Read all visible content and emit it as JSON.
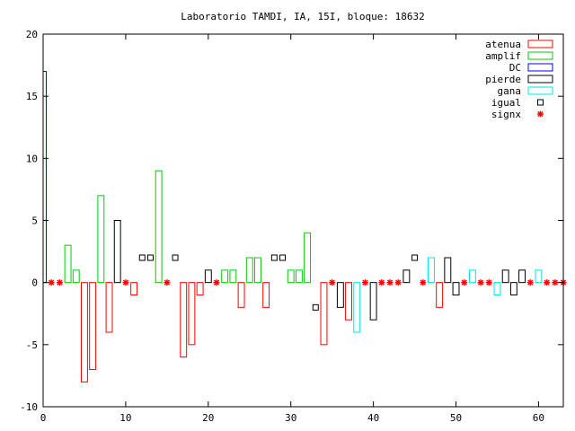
{
  "chart_data": {
    "type": "bar",
    "title": "Laboratorio TAMDI, IA, 15I,  bloque: 18632",
    "xlabel": "",
    "ylabel": "",
    "xlim": [
      0,
      63
    ],
    "ylim": [
      -10,
      20
    ],
    "xticks": [
      0,
      10,
      20,
      30,
      40,
      50,
      60
    ],
    "yticks": [
      -10,
      -5,
      0,
      5,
      10,
      15,
      20
    ],
    "grid": false,
    "legend_position": "top-right",
    "series": [
      {
        "name": "atenua",
        "kind": "bar",
        "color": "#ff0000",
        "points": [
          [
            5,
            -8
          ],
          [
            6,
            -7
          ],
          [
            8,
            -4
          ],
          [
            11,
            -1
          ],
          [
            17,
            -6
          ],
          [
            18,
            -5
          ],
          [
            19,
            -1
          ],
          [
            24,
            -2
          ],
          [
            27,
            -2
          ],
          [
            34,
            -5
          ],
          [
            37,
            -3
          ],
          [
            48,
            -2
          ]
        ]
      },
      {
        "name": "amplif",
        "kind": "bar",
        "color": "#00cc00",
        "points": [
          [
            3,
            3
          ],
          [
            4,
            1
          ],
          [
            7,
            7
          ],
          [
            14,
            9
          ],
          [
            22,
            1
          ],
          [
            23,
            1
          ],
          [
            25,
            2
          ],
          [
            26,
            2
          ],
          [
            30,
            1
          ],
          [
            31,
            1
          ],
          [
            32,
            4
          ]
        ]
      },
      {
        "name": "DC",
        "kind": "bar",
        "color": "#0000ff",
        "points": [
          [
            0,
            17
          ]
        ]
      },
      {
        "name": "pierde",
        "kind": "bar",
        "color": "#000000",
        "points": [
          [
            9,
            5
          ],
          [
            20,
            1
          ],
          [
            36,
            -2
          ],
          [
            40,
            -3
          ],
          [
            44,
            1
          ],
          [
            49,
            2
          ],
          [
            50,
            -1
          ],
          [
            56,
            1
          ],
          [
            57,
            -1
          ],
          [
            58,
            1
          ]
        ]
      },
      {
        "name": "gana",
        "kind": "bar",
        "color": "#00e5e5",
        "points": [
          [
            38,
            -4
          ],
          [
            47,
            2
          ],
          [
            52,
            1
          ],
          [
            55,
            -1
          ],
          [
            60,
            1
          ]
        ]
      },
      {
        "name": "igual",
        "kind": "marker",
        "marker": "square",
        "color": "#000000",
        "points": [
          [
            12,
            2
          ],
          [
            13,
            2
          ],
          [
            16,
            2
          ],
          [
            28,
            2
          ],
          [
            29,
            2
          ],
          [
            33,
            -2
          ],
          [
            45,
            2
          ]
        ]
      },
      {
        "name": "signx",
        "kind": "marker",
        "marker": "star",
        "color": "#ff0000",
        "points": [
          [
            1,
            0
          ],
          [
            2,
            0
          ],
          [
            10,
            0
          ],
          [
            15,
            0
          ],
          [
            21,
            0
          ],
          [
            35,
            0
          ],
          [
            39,
            0
          ],
          [
            41,
            0
          ],
          [
            42,
            0
          ],
          [
            43,
            0
          ],
          [
            46,
            0
          ],
          [
            51,
            0
          ],
          [
            53,
            0
          ],
          [
            54,
            0
          ],
          [
            59,
            0
          ],
          [
            61,
            0
          ],
          [
            62,
            0
          ],
          [
            63,
            0
          ]
        ]
      }
    ]
  }
}
